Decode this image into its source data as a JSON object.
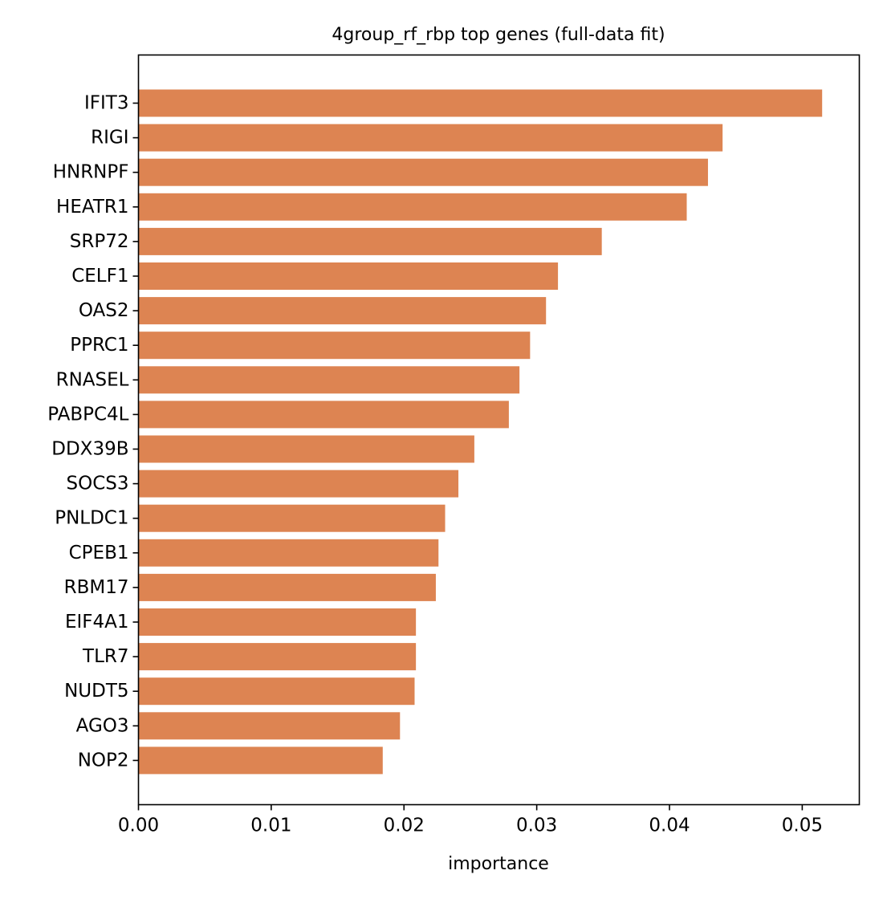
{
  "chart_data": {
    "type": "bar",
    "orientation": "horizontal",
    "title": "4group_rf_rbp top genes (full-data fit)",
    "xlabel": "importance",
    "ylabel": "",
    "xlim": [
      0,
      0.0543
    ],
    "x_ticks": [
      0.0,
      0.01,
      0.02,
      0.03,
      0.04,
      0.05
    ],
    "x_tick_labels": [
      "0.00",
      "0.01",
      "0.02",
      "0.03",
      "0.04",
      "0.05"
    ],
    "categories": [
      "IFIT3",
      "RIGI",
      "HNRNPF",
      "HEATR1",
      "SRP72",
      "CELF1",
      "OAS2",
      "PPRC1",
      "RNASEL",
      "PABPC4L",
      "DDX39B",
      "SOCS3",
      "PNLDC1",
      "CPEB1",
      "RBM17",
      "EIF4A1",
      "TLR7",
      "NUDT5",
      "AGO3",
      "NOP2"
    ],
    "values": [
      0.0515,
      0.044,
      0.0429,
      0.0413,
      0.0349,
      0.0316,
      0.0307,
      0.0295,
      0.0287,
      0.0279,
      0.0253,
      0.0241,
      0.0231,
      0.0226,
      0.0224,
      0.0209,
      0.0209,
      0.0208,
      0.0197,
      0.0184
    ],
    "bar_color": "#dd8452",
    "grid": false,
    "legend": "none"
  }
}
